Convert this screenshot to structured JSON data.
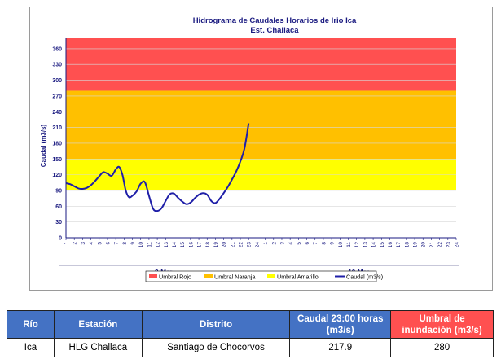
{
  "chart_data": {
    "type": "line",
    "title": "Hidrograma de Caudales Horarios de Irio Ica",
    "subtitle": "Est. Challaca",
    "ylabel": "Caudal  (m3/s)",
    "ylim": [
      0,
      380
    ],
    "yticks": [
      0,
      30,
      60,
      90,
      120,
      150,
      180,
      210,
      240,
      270,
      300,
      330,
      360
    ],
    "hour_ticks": [
      "1",
      "2",
      "3",
      "4",
      "5",
      "6",
      "7",
      "8",
      "9",
      "10",
      "11",
      "12",
      "13",
      "14",
      "15",
      "16",
      "17",
      "18",
      "19",
      "20",
      "21",
      "22",
      "23",
      "24",
      "1",
      "2",
      "3",
      "4",
      "5",
      "6",
      "7",
      "8",
      "9",
      "10",
      "11",
      "12",
      "13",
      "14",
      "15",
      "16",
      "17",
      "18",
      "19",
      "20",
      "21",
      "22",
      "23",
      "24"
    ],
    "days": [
      "9-Mar",
      "10-Mar"
    ],
    "bands": [
      {
        "name": "Umbral Amarillo",
        "from": 90,
        "to": 150,
        "color": "#ffff00"
      },
      {
        "name": "Umbral Naranja",
        "from": 150,
        "to": 280,
        "color": "#ffc000"
      },
      {
        "name": "Umbral Rojo",
        "from": 280,
        "to": 380,
        "color": "#ff5050"
      }
    ],
    "legend": [
      {
        "label": "Umbral Rojo",
        "color": "#ff5050",
        "kind": "box"
      },
      {
        "label": "Umbral Naranja",
        "color": "#ffc000",
        "kind": "box"
      },
      {
        "label": "Umbral Amarillo",
        "color": "#ffff00",
        "kind": "box"
      },
      {
        "label": "Caudal (m3/s)",
        "color": "#1f1fa8",
        "kind": "line"
      }
    ],
    "legend_position": "bottom",
    "series": [
      {
        "name": "Caudal (m3/s)",
        "color": "#1f1fa8",
        "x": [
          1,
          1.5,
          2,
          2.5,
          3,
          3.5,
          4,
          4.5,
          5,
          5.5,
          6,
          6.5,
          7,
          7.4,
          7.8,
          8.2,
          8.6,
          9,
          9.5,
          10,
          10.5,
          11,
          11.5,
          12,
          12.5,
          13,
          13.5,
          14,
          14.5,
          15,
          15.5,
          16,
          16.5,
          17,
          17.5,
          18,
          18.5,
          19,
          19.5,
          20,
          20.5,
          21,
          21.5,
          22,
          22.5,
          23
        ],
        "y": [
          104,
          102,
          98,
          94,
          93,
          95,
          100,
          108,
          117,
          125,
          122,
          118,
          130,
          135,
          120,
          90,
          77,
          80,
          88,
          103,
          106,
          80,
          55,
          51,
          56,
          70,
          83,
          84,
          76,
          69,
          64,
          67,
          75,
          82,
          85,
          82,
          70,
          66,
          74,
          85,
          97,
          111,
          126,
          145,
          170,
          217.9
        ]
      }
    ]
  },
  "table": {
    "headers": {
      "rio": "Río",
      "estacion": "Estación",
      "distrito": "Distrito",
      "caudal": "Caudal 23:00 horas (m3/s)",
      "umbral": "Umbral de inundación (m3/s)"
    },
    "row": {
      "rio": "Ica",
      "estacion": "HLG Challaca",
      "distrito": "Santiago de Chocorvos",
      "caudal": "217.9",
      "umbral": "280"
    }
  }
}
